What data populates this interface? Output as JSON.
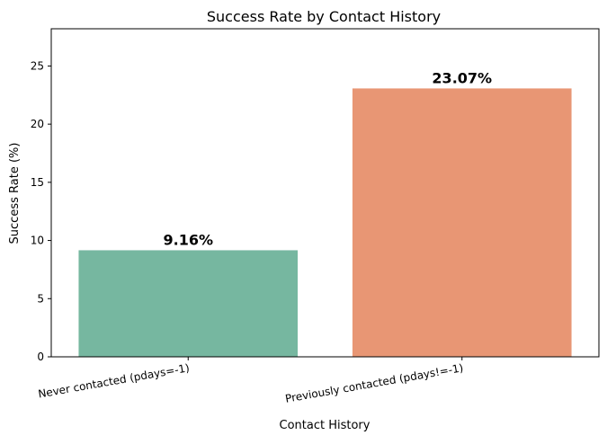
{
  "chart_data": {
    "type": "bar",
    "title": "Success Rate by Contact History",
    "xlabel": "Contact History",
    "ylabel": "Success Rate (%)",
    "categories": [
      "Never contacted (pdays=-1)",
      "Previously contacted (pdays!=-1)"
    ],
    "values": [
      9.16,
      23.07
    ],
    "data_labels": [
      "9.16%",
      "23.07%"
    ],
    "colors": [
      "#76b7a0",
      "#e89674"
    ],
    "ylim": [
      0,
      28.2
    ],
    "yticks": [
      0,
      5,
      10,
      15,
      20,
      25
    ],
    "grid": false,
    "legend": "none"
  }
}
